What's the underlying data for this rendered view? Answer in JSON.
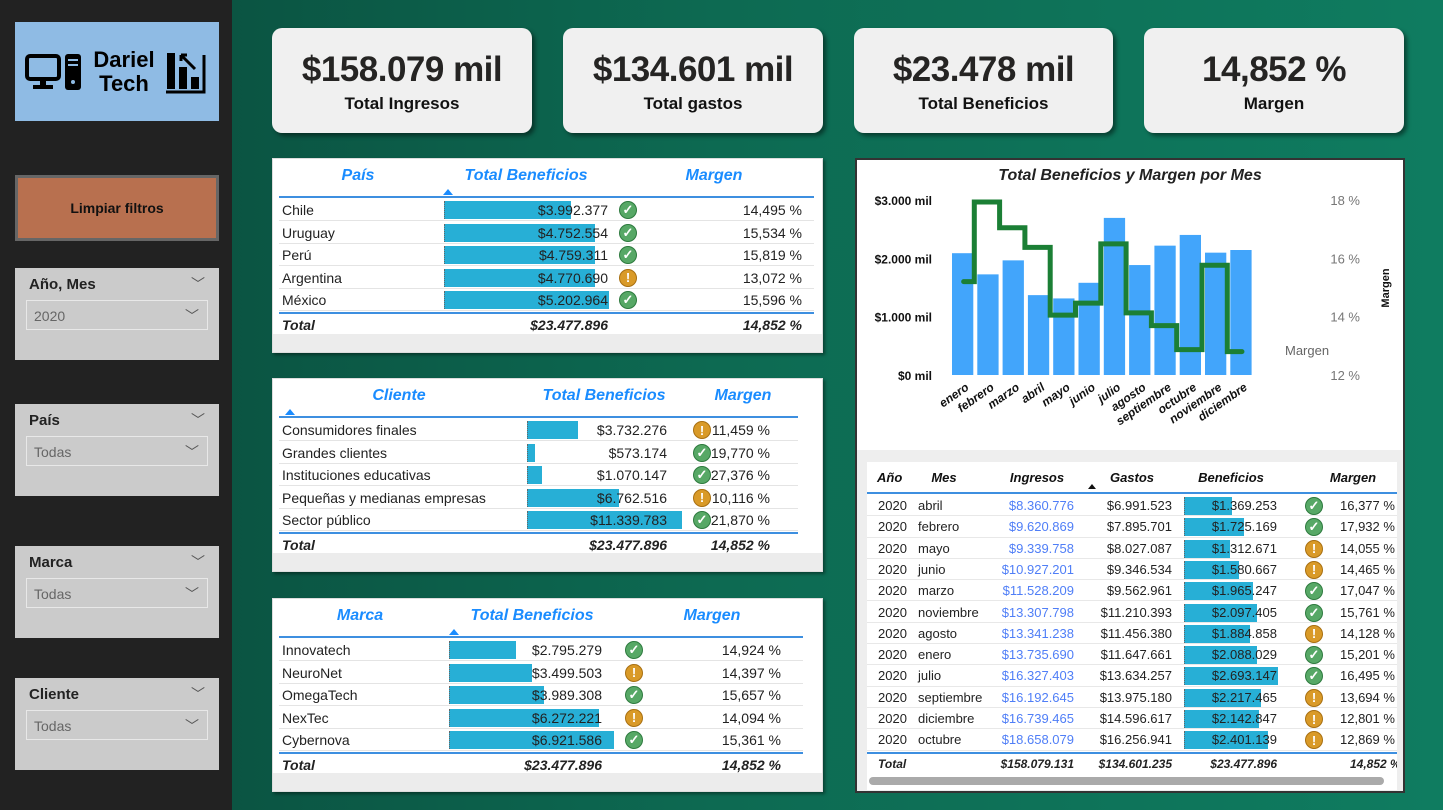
{
  "sidebar": {
    "logo_text": "Dariel Tech",
    "clear_button": "Limpiar filtros",
    "slicers": [
      {
        "title": "Año, Mes",
        "value": "2020"
      },
      {
        "title": "País",
        "value": "Todas"
      },
      {
        "title": "Marca",
        "value": "Todas"
      },
      {
        "title": "Cliente",
        "value": "Todas"
      }
    ]
  },
  "kpis": [
    {
      "value": "$158.079 mil",
      "label": "Total Ingresos"
    },
    {
      "value": "$134.601 mil",
      "label": "Total gastos"
    },
    {
      "value": "$23.478 mil",
      "label": "Total Beneficios"
    },
    {
      "value": "14,852 %",
      "label": "Margen"
    }
  ],
  "colors": {
    "bar": "#27afd6",
    "ok": "#57a866",
    "warn": "#d99a28",
    "header": "#1a8cff",
    "chart_bar": "#42a5fb",
    "chart_line": "#1b7f35",
    "ingresos": "#4f7ef7"
  },
  "tables": [
    {
      "headers": [
        "País",
        "Total Beneficios",
        "Margen"
      ],
      "rows": [
        {
          "name": "Chile",
          "value": "$3.992.377",
          "amount": 3992377,
          "status": "ok",
          "margin": "14,495 %"
        },
        {
          "name": "Uruguay",
          "value": "$4.752.554",
          "amount": 4752554,
          "status": "ok",
          "margin": "15,534 %"
        },
        {
          "name": "Perú",
          "value": "$4.759.311",
          "amount": 4759311,
          "status": "ok",
          "margin": "15,819 %"
        },
        {
          "name": "Argentina",
          "value": "$4.770.690",
          "amount": 4770690,
          "status": "warn",
          "margin": "13,072 %"
        },
        {
          "name": "México",
          "value": "$5.202.964",
          "amount": 5202964,
          "status": "ok",
          "margin": "15,596 %"
        }
      ],
      "total": {
        "label": "Total",
        "value": "$23.477.896",
        "margin": "14,852 %"
      }
    },
    {
      "headers": [
        "Cliente",
        "Total Beneficios",
        "Margen"
      ],
      "rows": [
        {
          "name": "Consumidores finales",
          "value": "$3.732.276",
          "amount": 3732276,
          "status": "warn",
          "margin": "11,459 %"
        },
        {
          "name": "Grandes clientes",
          "value": "$573.174",
          "amount": 573174,
          "status": "ok",
          "margin": "19,770 %"
        },
        {
          "name": "Instituciones educativas",
          "value": "$1.070.147",
          "amount": 1070147,
          "status": "ok",
          "margin": "27,376 %"
        },
        {
          "name": "Pequeñas y medianas empresas",
          "value": "$6.762.516",
          "amount": 6762516,
          "status": "warn",
          "margin": "10,116 %"
        },
        {
          "name": "Sector público",
          "value": "$11.339.783",
          "amount": 11339783,
          "status": "ok",
          "margin": "21,870 %"
        }
      ],
      "total": {
        "label": "Total",
        "value": "$23.477.896",
        "margin": "14,852 %"
      }
    },
    {
      "headers": [
        "Marca",
        "Total Beneficios",
        "Margen"
      ],
      "rows": [
        {
          "name": "Innovatech",
          "value": "$2.795.279",
          "amount": 2795279,
          "status": "ok",
          "margin": "14,924 %"
        },
        {
          "name": "NeuroNet",
          "value": "$3.499.503",
          "amount": 3499503,
          "status": "warn",
          "margin": "14,397 %"
        },
        {
          "name": "OmegaTech",
          "value": "$3.989.308",
          "amount": 3989308,
          "status": "ok",
          "margin": "15,657 %"
        },
        {
          "name": "NexTec",
          "value": "$6.272.221",
          "amount": 6272221,
          "status": "warn",
          "margin": "14,094 %"
        },
        {
          "name": "Cybernova",
          "value": "$6.921.586",
          "amount": 6921586,
          "status": "ok",
          "margin": "15,361 %"
        }
      ],
      "total": {
        "label": "Total",
        "value": "$23.477.896",
        "margin": "14,852 %"
      }
    }
  ],
  "monthly_table": {
    "headers": [
      "Año",
      "Mes",
      "Ingresos",
      "Gastos",
      "Beneficios",
      "Margen"
    ],
    "rows": [
      {
        "year": "2020",
        "month": "abril",
        "ingresos": "$8.360.776",
        "gastos": "$6.991.523",
        "beneficios": "$1.369.253",
        "amount": 1369253,
        "status": "ok",
        "margen": "16,377 %"
      },
      {
        "year": "2020",
        "month": "febrero",
        "ingresos": "$9.620.869",
        "gastos": "$7.895.701",
        "beneficios": "$1.725.169",
        "amount": 1725169,
        "status": "ok",
        "margen": "17,932 %"
      },
      {
        "year": "2020",
        "month": "mayo",
        "ingresos": "$9.339.758",
        "gastos": "$8.027.087",
        "beneficios": "$1.312.671",
        "amount": 1312671,
        "status": "warn",
        "margen": "14,055 %"
      },
      {
        "year": "2020",
        "month": "junio",
        "ingresos": "$10.927.201",
        "gastos": "$9.346.534",
        "beneficios": "$1.580.667",
        "amount": 1580667,
        "status": "warn",
        "margen": "14,465 %"
      },
      {
        "year": "2020",
        "month": "marzo",
        "ingresos": "$11.528.209",
        "gastos": "$9.562.961",
        "beneficios": "$1.965.247",
        "amount": 1965247,
        "status": "ok",
        "margen": "17,047 %"
      },
      {
        "year": "2020",
        "month": "noviembre",
        "ingresos": "$13.307.798",
        "gastos": "$11.210.393",
        "beneficios": "$2.097.405",
        "amount": 2097405,
        "status": "ok",
        "margen": "15,761 %"
      },
      {
        "year": "2020",
        "month": "agosto",
        "ingresos": "$13.341.238",
        "gastos": "$11.456.380",
        "beneficios": "$1.884.858",
        "amount": 1884858,
        "status": "warn",
        "margen": "14,128 %"
      },
      {
        "year": "2020",
        "month": "enero",
        "ingresos": "$13.735.690",
        "gastos": "$11.647.661",
        "beneficios": "$2.088.029",
        "amount": 2088029,
        "status": "ok",
        "margen": "15,201 %"
      },
      {
        "year": "2020",
        "month": "julio",
        "ingresos": "$16.327.403",
        "gastos": "$13.634.257",
        "beneficios": "$2.693.147",
        "amount": 2693147,
        "status": "ok",
        "margen": "16,495 %"
      },
      {
        "year": "2020",
        "month": "septiembre",
        "ingresos": "$16.192.645",
        "gastos": "$13.975.180",
        "beneficios": "$2.217.465",
        "amount": 2217465,
        "status": "warn",
        "margen": "13,694 %"
      },
      {
        "year": "2020",
        "month": "diciembre",
        "ingresos": "$16.739.465",
        "gastos": "$14.596.617",
        "beneficios": "$2.142.847",
        "amount": 2142847,
        "status": "warn",
        "margen": "12,801 %"
      },
      {
        "year": "2020",
        "month": "octubre",
        "ingresos": "$18.658.079",
        "gastos": "$16.256.941",
        "beneficios": "$2.401.139",
        "amount": 2401139,
        "status": "warn",
        "margen": "12,869 %"
      }
    ],
    "total": {
      "label": "Total",
      "ingresos": "$158.079.131",
      "gastos": "$134.601.235",
      "beneficios": "$23.477.896",
      "margen": "14,852 %"
    }
  },
  "chart_data": {
    "type": "bar+line",
    "title": "Total Beneficios y Margen por Mes",
    "categories": [
      "enero",
      "febrero",
      "marzo",
      "abril",
      "mayo",
      "junio",
      "julio",
      "agosto",
      "septiembre",
      "octubre",
      "noviembre",
      "diciembre"
    ],
    "series": [
      {
        "name": "Total Beneficios",
        "type": "bar",
        "axis": "left",
        "values": [
          2088029,
          1725169,
          1965247,
          1369253,
          1312671,
          1580667,
          2693147,
          1884858,
          2217465,
          2401139,
          2097405,
          2142847
        ]
      },
      {
        "name": "Margen",
        "type": "line-step",
        "axis": "right",
        "values": [
          15.201,
          17.932,
          17.047,
          16.377,
          14.055,
          14.465,
          16.495,
          14.128,
          13.694,
          12.869,
          15.761,
          12.801
        ]
      }
    ],
    "y_left": {
      "ticks": [
        "$0 mil",
        "$1.000 mil",
        "$2.000 mil",
        "$3.000 mil"
      ],
      "range": [
        0,
        3000000
      ]
    },
    "y_right": {
      "label": "Margen",
      "ticks": [
        "12 %",
        "14 %",
        "16 %",
        "18 %"
      ],
      "range": [
        12,
        18
      ]
    },
    "line_label": "Margen",
    "grid": false
  }
}
